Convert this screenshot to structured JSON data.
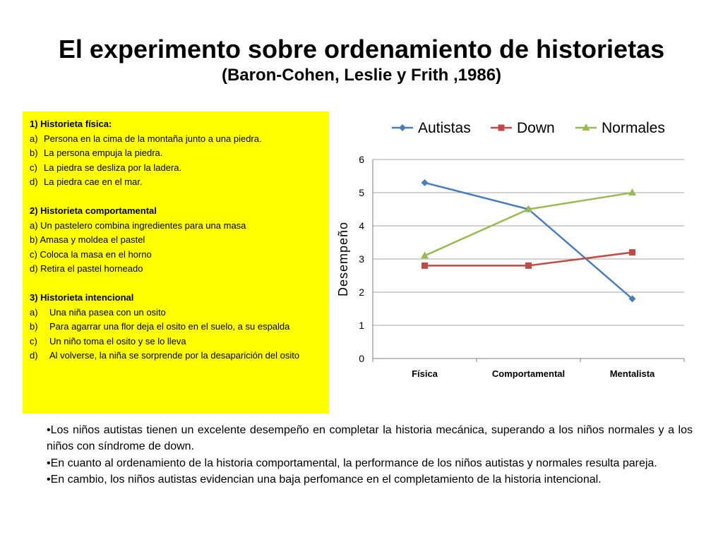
{
  "slide": {
    "title": "El experimento sobre ordenamiento de historietas",
    "subtitle": "(Baron-Cohen, Leslie y Frith ,1986)"
  },
  "box": {
    "section1": {
      "title": "1) Historieta física:",
      "items": [
        {
          "marker": "a)",
          "text": "Persona en la cima de la montaña junto a una piedra."
        },
        {
          "marker": "b)",
          "text": "La persona empuja la piedra."
        },
        {
          "marker": "c)",
          "text": "La piedra se desliza por la ladera."
        },
        {
          "marker": "d)",
          "text": "La piedra cae en el mar."
        }
      ]
    },
    "section2": {
      "title": "2) Historieta comportamental",
      "items": [
        "a) Un pastelero combina ingredientes para una masa",
        "b) Amasa y  moldea el pastel",
        "c) Coloca la masa en el horno",
        "d) Retira el pastel horneado"
      ]
    },
    "section3": {
      "title": "3) Historieta intencional",
      "items": [
        {
          "marker": "a)",
          "text": "Una niña pasea con un osito"
        },
        {
          "marker": "b)",
          "text": "Para agarrar una flor deja el osito en el suelo, a su espalda"
        },
        {
          "marker": "c)",
          "text": "Un niño toma el osito y se lo lleva"
        },
        {
          "marker": "d)",
          "text": "Al volverse, la niña se sorprende por la desaparición del osito"
        }
      ]
    }
  },
  "bullets": [
    "•Los niños autistas tienen un excelente desempeño en completar la historia mecánica, superando a los niños normales y a los niños con síndrome de down.",
    "•En cuanto al ordenamiento de la historia comportamental, la performance de los niños autistas y normales resulta pareja.",
    "•En cambio, los niños autistas evidencian una baja perfomance en el completamiento de la historia intencional."
  ],
  "chart_data": {
    "type": "line",
    "categories": [
      "Física",
      "Comportamental",
      "Mentalista"
    ],
    "series": [
      {
        "name": "Autistas",
        "values": [
          5.3,
          4.5,
          1.8
        ],
        "color": "#4a7ebb",
        "marker": "diamond"
      },
      {
        "name": "Down",
        "values": [
          2.8,
          2.8,
          3.2
        ],
        "color": "#be4b48",
        "marker": "square"
      },
      {
        "name": "Normales",
        "values": [
          3.1,
          4.5,
          5.0
        ],
        "color": "#98b954",
        "marker": "triangle"
      }
    ],
    "ylabel": "Desempeño",
    "xlabel": "",
    "ylim": [
      0,
      6
    ],
    "yticks": [
      "0",
      "1",
      "2",
      "3",
      "4",
      "5",
      "6"
    ],
    "grid": true,
    "legend_position": "top"
  }
}
